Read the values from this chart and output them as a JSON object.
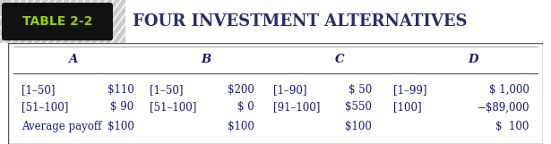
{
  "title_label": "TABLE 2-2",
  "title_text": "FOUR INVESTMENT ALTERNATIVES",
  "header_row": [
    "A",
    "B",
    "C",
    "D"
  ],
  "rows": [
    [
      "[1–50]",
      "$110",
      "[1–50]",
      "$200",
      "[1–90]",
      "$ 50",
      "[1–99]",
      "$ 1,000"
    ],
    [
      "[51–100]",
      "$ 90",
      "[51–100]",
      "$ 0",
      "[91–100]",
      "$550",
      "[100]",
      "−$89,000"
    ],
    [
      "Average payoff",
      "$100",
      "",
      "$100",
      "",
      "$100",
      "",
      "$  100"
    ]
  ],
  "text_color": "#1a1a6e",
  "title_color": "#8B0000",
  "font_size": 8.5,
  "header_font_size": 9.5,
  "title_font_size": 13
}
